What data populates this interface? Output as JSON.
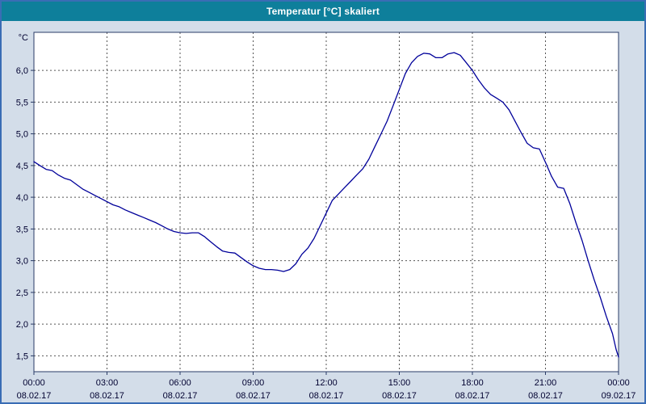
{
  "window": {
    "title": "Temperatur [°C] skaliert"
  },
  "colors": {
    "titlebar_bg": "#0e7f9b",
    "window_border": "#3a6db5",
    "background": "#d3dde9",
    "plot_bg": "#ffffff",
    "plot_border": "#2a3b66",
    "grid": "#555555",
    "line": "#00009a",
    "text": "#000030"
  },
  "chart_data": {
    "type": "line",
    "title": "Temperatur [°C] skaliert",
    "unit_label": "°C",
    "xlabel": "",
    "ylabel": "°C",
    "grid": true,
    "legend": "none",
    "ylim": [
      1.25,
      6.6
    ],
    "y_ticks": [
      1.5,
      2.0,
      2.5,
      3.0,
      3.5,
      4.0,
      4.5,
      5.0,
      5.5,
      6.0
    ],
    "y_tick_labels": [
      "1,5",
      "2,0",
      "2,5",
      "3,0",
      "3,5",
      "4,0",
      "4,5",
      "5,0",
      "5,5",
      "6,0"
    ],
    "xlim": [
      0,
      24
    ],
    "x_ticks": [
      0,
      3,
      6,
      9,
      12,
      15,
      18,
      21,
      24
    ],
    "x_tick_labels": [
      "00:00",
      "03:00",
      "06:00",
      "09:00",
      "12:00",
      "15:00",
      "18:00",
      "21:00",
      "00:00"
    ],
    "x_tick_dates": [
      "08.02.17",
      "08.02.17",
      "08.02.17",
      "08.02.17",
      "08.02.17",
      "08.02.17",
      "08.02.17",
      "08.02.17",
      "09.02.17"
    ],
    "series_name": "Temperatur",
    "points": [
      [
        0,
        4.56
      ],
      [
        0.25,
        4.5
      ],
      [
        0.5,
        4.44
      ],
      [
        0.75,
        4.42
      ],
      [
        1,
        4.35
      ],
      [
        1.25,
        4.3
      ],
      [
        1.5,
        4.27
      ],
      [
        1.75,
        4.2
      ],
      [
        2,
        4.13
      ],
      [
        2.25,
        4.08
      ],
      [
        2.5,
        4.03
      ],
      [
        2.75,
        3.98
      ],
      [
        3,
        3.93
      ],
      [
        3.25,
        3.88
      ],
      [
        3.5,
        3.85
      ],
      [
        3.75,
        3.8
      ],
      [
        4,
        3.76
      ],
      [
        4.25,
        3.72
      ],
      [
        4.5,
        3.68
      ],
      [
        4.75,
        3.64
      ],
      [
        5,
        3.6
      ],
      [
        5.25,
        3.55
      ],
      [
        5.5,
        3.5
      ],
      [
        5.75,
        3.46
      ],
      [
        6,
        3.44
      ],
      [
        6.25,
        3.43
      ],
      [
        6.5,
        3.44
      ],
      [
        6.75,
        3.44
      ],
      [
        7,
        3.38
      ],
      [
        7.25,
        3.3
      ],
      [
        7.5,
        3.22
      ],
      [
        7.75,
        3.15
      ],
      [
        8,
        3.13
      ],
      [
        8.25,
        3.12
      ],
      [
        8.5,
        3.05
      ],
      [
        8.75,
        2.98
      ],
      [
        9,
        2.92
      ],
      [
        9.25,
        2.88
      ],
      [
        9.5,
        2.86
      ],
      [
        9.75,
        2.86
      ],
      [
        10,
        2.85
      ],
      [
        10.25,
        2.83
      ],
      [
        10.5,
        2.86
      ],
      [
        10.75,
        2.95
      ],
      [
        11,
        3.1
      ],
      [
        11.25,
        3.2
      ],
      [
        11.5,
        3.35
      ],
      [
        11.75,
        3.55
      ],
      [
        12,
        3.75
      ],
      [
        12.25,
        3.95
      ],
      [
        12.5,
        4.05
      ],
      [
        12.75,
        4.15
      ],
      [
        13,
        4.25
      ],
      [
        13.25,
        4.35
      ],
      [
        13.5,
        4.45
      ],
      [
        13.75,
        4.6
      ],
      [
        14,
        4.8
      ],
      [
        14.25,
        5.0
      ],
      [
        14.5,
        5.2
      ],
      [
        14.75,
        5.45
      ],
      [
        15,
        5.7
      ],
      [
        15.25,
        5.95
      ],
      [
        15.5,
        6.12
      ],
      [
        15.75,
        6.22
      ],
      [
        16,
        6.27
      ],
      [
        16.25,
        6.26
      ],
      [
        16.5,
        6.2
      ],
      [
        16.75,
        6.2
      ],
      [
        17,
        6.26
      ],
      [
        17.25,
        6.28
      ],
      [
        17.5,
        6.24
      ],
      [
        17.75,
        6.12
      ],
      [
        18,
        6.0
      ],
      [
        18.25,
        5.85
      ],
      [
        18.5,
        5.72
      ],
      [
        18.75,
        5.62
      ],
      [
        19,
        5.56
      ],
      [
        19.25,
        5.5
      ],
      [
        19.5,
        5.38
      ],
      [
        19.75,
        5.2
      ],
      [
        20,
        5.02
      ],
      [
        20.25,
        4.85
      ],
      [
        20.5,
        4.78
      ],
      [
        20.75,
        4.76
      ],
      [
        21,
        4.55
      ],
      [
        21.25,
        4.33
      ],
      [
        21.5,
        4.16
      ],
      [
        21.75,
        4.14
      ],
      [
        22,
        3.9
      ],
      [
        22.25,
        3.6
      ],
      [
        22.5,
        3.32
      ],
      [
        22.75,
        3.0
      ],
      [
        23,
        2.7
      ],
      [
        23.25,
        2.42
      ],
      [
        23.5,
        2.12
      ],
      [
        23.75,
        1.85
      ],
      [
        23.9,
        1.6
      ],
      [
        24,
        1.48
      ]
    ]
  }
}
